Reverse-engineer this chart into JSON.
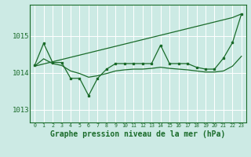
{
  "background_color": "#cceae4",
  "grid_color": "#ffffff",
  "line_color": "#1a6b2a",
  "xlabel": "Graphe pression niveau de la mer (hPa)",
  "xlabel_fontsize": 7,
  "yticks": [
    1013,
    1014,
    1015
  ],
  "xlim": [
    -0.5,
    23.5
  ],
  "ylim": [
    1012.65,
    1015.85
  ],
  "x": [
    0,
    1,
    2,
    3,
    4,
    5,
    6,
    7,
    8,
    9,
    10,
    11,
    12,
    13,
    14,
    15,
    16,
    17,
    18,
    19,
    20,
    21,
    22,
    23
  ],
  "line_trend": [
    1014.18,
    1014.24,
    1014.3,
    1014.36,
    1014.42,
    1014.48,
    1014.54,
    1014.6,
    1014.66,
    1014.72,
    1014.78,
    1014.84,
    1014.9,
    1014.96,
    1015.02,
    1015.08,
    1015.14,
    1015.2,
    1015.26,
    1015.32,
    1015.38,
    1015.44,
    1015.5,
    1015.6
  ],
  "line_hourly": [
    1014.2,
    1014.8,
    1014.28,
    1014.28,
    1013.85,
    1013.85,
    1013.38,
    1013.85,
    1014.1,
    1014.25,
    1014.25,
    1014.25,
    1014.25,
    1014.25,
    1014.75,
    1014.25,
    1014.25,
    1014.25,
    1014.15,
    1014.1,
    1014.1,
    1014.4,
    1014.82,
    1015.6
  ],
  "line_smooth": [
    1014.18,
    1014.38,
    1014.25,
    1014.2,
    1014.05,
    1013.98,
    1013.88,
    1013.92,
    1013.98,
    1014.05,
    1014.08,
    1014.1,
    1014.1,
    1014.12,
    1014.15,
    1014.12,
    1014.1,
    1014.08,
    1014.05,
    1014.02,
    1014.02,
    1014.05,
    1014.18,
    1014.45
  ]
}
